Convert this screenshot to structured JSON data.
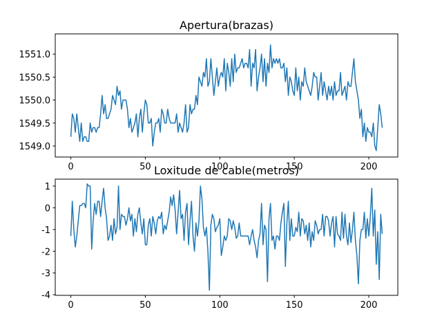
{
  "chart_data": [
    {
      "type": "line",
      "title": "Apertura(brazas)",
      "color": "#1f77b4",
      "x": [
        0,
        1,
        2,
        3,
        4,
        5,
        6,
        7,
        8,
        9,
        10,
        11,
        12,
        13,
        14,
        15,
        16,
        17,
        18,
        19,
        20,
        21,
        22,
        23,
        24,
        25,
        26,
        27,
        28,
        29,
        30,
        31,
        32,
        33,
        34,
        35,
        36,
        37,
        38,
        39,
        40,
        41,
        42,
        43,
        44,
        45,
        46,
        47,
        48,
        49,
        50,
        51,
        52,
        53,
        54,
        55,
        56,
        57,
        58,
        59,
        60,
        61,
        62,
        63,
        64,
        65,
        66,
        67,
        68,
        69,
        70,
        71,
        72,
        73,
        74,
        75,
        76,
        77,
        78,
        79,
        80,
        81,
        82,
        83,
        84,
        85,
        86,
        87,
        88,
        89,
        90,
        91,
        92,
        93,
        94,
        95,
        96,
        97,
        98,
        99,
        100,
        101,
        102,
        103,
        104,
        105,
        106,
        107,
        108,
        109,
        110,
        111,
        112,
        113,
        114,
        115,
        116,
        117,
        118,
        119,
        120,
        121,
        122,
        123,
        124,
        125,
        126,
        127,
        128,
        129,
        130,
        131,
        132,
        133,
        134,
        135,
        136,
        137,
        138,
        139,
        140,
        141,
        142,
        143,
        144,
        145,
        146,
        147,
        148,
        149,
        150,
        151,
        152,
        153,
        154,
        155,
        156,
        157,
        158,
        159,
        160,
        161,
        162,
        163,
        164,
        165,
        166,
        167,
        168,
        169,
        170,
        171,
        172,
        173,
        174,
        175,
        176,
        177,
        178,
        179,
        180,
        181,
        182,
        183,
        184,
        185,
        186,
        187,
        188,
        189,
        190,
        191,
        192,
        193,
        194,
        195,
        196,
        197,
        198,
        199,
        200,
        201,
        202,
        203,
        204,
        205,
        206,
        207,
        208,
        209
      ],
      "values": [
        1549.2,
        1549.7,
        1549.6,
        1549.3,
        1549.7,
        1549.4,
        1549.1,
        1549.5,
        1549.1,
        1549.2,
        1549.2,
        1549.1,
        1549.1,
        1549.5,
        1549.3,
        1549.4,
        1549.4,
        1549.3,
        1549.4,
        1549.4,
        1549.7,
        1550.1,
        1549.7,
        1549.9,
        1549.6,
        1549.6,
        1549.7,
        1549.8,
        1550.1,
        1550.0,
        1549.9,
        1550.3,
        1550.1,
        1550.2,
        1549.8,
        1550.0,
        1550.0,
        1550.0,
        1549.8,
        1549.4,
        1549.6,
        1549.3,
        1549.4,
        1549.5,
        1549.7,
        1549.2,
        1549.6,
        1549.8,
        1549.3,
        1549.7,
        1550.0,
        1549.9,
        1549.5,
        1549.5,
        1549.6,
        1549.0,
        1549.3,
        1549.5,
        1549.5,
        1549.6,
        1549.3,
        1549.8,
        1549.7,
        1549.5,
        1549.5,
        1549.8,
        1549.6,
        1549.5,
        1549.5,
        1549.5,
        1549.5,
        1549.7,
        1549.3,
        1549.5,
        1549.4,
        1549.3,
        1549.5,
        1549.9,
        1549.3,
        1549.4,
        1549.9,
        1549.7,
        1549.8,
        1549.8,
        1550.1,
        1549.9,
        1550.5,
        1550.4,
        1550.3,
        1550.6,
        1550.5,
        1550.9,
        1550.3,
        1550.4,
        1550.9,
        1550.5,
        1550.1,
        1550.4,
        1550.7,
        1550.3,
        1550.5,
        1550.6,
        1550.5,
        1550.9,
        1550.2,
        1550.8,
        1550.6,
        1550.3,
        1550.9,
        1550.4,
        1551.0,
        1550.6,
        1550.7,
        1550.7,
        1550.8,
        1550.9,
        1550.7,
        1550.8,
        1550.8,
        1550.7,
        1551.1,
        1550.3,
        1550.8,
        1550.7,
        1551.1,
        1550.2,
        1550.5,
        1550.7,
        1551.0,
        1550.4,
        1550.9,
        1550.3,
        1550.8,
        1550.6,
        1551.2,
        1550.7,
        1550.9,
        1550.8,
        1550.9,
        1550.8,
        1550.9,
        1550.7,
        1550.7,
        1550.8,
        1550.4,
        1550.7,
        1550.1,
        1550.5,
        1550.4,
        1550.2,
        1550.1,
        1550.7,
        1550.2,
        1550.5,
        1550.0,
        1550.4,
        1550.3,
        1550.7,
        1550.4,
        1550.3,
        1550.2,
        1550.1,
        1550.3,
        1550.6,
        1550.5,
        1550.5,
        1550.0,
        1550.3,
        1550.6,
        1550.1,
        1550.4,
        1550.2,
        1550.0,
        1550.3,
        1550.1,
        1550.3,
        1550.0,
        1550.4,
        1550.1,
        1550.2,
        1550.2,
        1550.6,
        1550.1,
        1550.2,
        1550.3,
        1550.0,
        1550.4,
        1550.3,
        1550.3,
        1550.6,
        1550.9,
        1550.4,
        1550.2,
        1550.0,
        1549.6,
        1549.8,
        1549.2,
        1549.5,
        1549.1,
        1549.4,
        1549.3,
        1549.3,
        1549.2,
        1549.5,
        1549.0,
        1548.9,
        1549.4,
        1549.9,
        1549.7,
        1549.4
      ],
      "xlim": [
        -10.45,
        219.45
      ],
      "ylim": [
        1548.76,
        1551.44
      ],
      "xticks": [
        0,
        50,
        100,
        150,
        200
      ],
      "yticks": [
        {
          "value": 1549,
          "label": "1549.0"
        },
        1549.5,
        {
          "value": 1550,
          "label": "1550.0"
        },
        1550.5,
        {
          "value": 1551,
          "label": "1551.0"
        }
      ]
    },
    {
      "type": "line",
      "title": "Loxitude de cable(metros)",
      "color": "#1f77b4",
      "x": [
        0,
        1,
        2,
        3,
        4,
        5,
        6,
        7,
        8,
        9,
        10,
        11,
        12,
        13,
        14,
        15,
        16,
        17,
        18,
        19,
        20,
        21,
        22,
        23,
        24,
        25,
        26,
        27,
        28,
        29,
        30,
        31,
        32,
        33,
        34,
        35,
        36,
        37,
        38,
        39,
        40,
        41,
        42,
        43,
        44,
        45,
        46,
        47,
        48,
        49,
        50,
        51,
        52,
        53,
        54,
        55,
        56,
        57,
        58,
        59,
        60,
        61,
        62,
        63,
        64,
        65,
        66,
        67,
        68,
        69,
        70,
        71,
        72,
        73,
        74,
        75,
        76,
        77,
        78,
        79,
        80,
        81,
        82,
        83,
        84,
        85,
        86,
        87,
        88,
        89,
        90,
        91,
        92,
        93,
        94,
        95,
        96,
        97,
        98,
        99,
        100,
        101,
        102,
        103,
        104,
        105,
        106,
        107,
        108,
        109,
        110,
        111,
        112,
        113,
        114,
        115,
        116,
        117,
        118,
        119,
        120,
        121,
        122,
        123,
        124,
        125,
        126,
        127,
        128,
        129,
        130,
        131,
        132,
        133,
        134,
        135,
        136,
        137,
        138,
        139,
        140,
        141,
        142,
        143,
        144,
        145,
        146,
        147,
        148,
        149,
        150,
        151,
        152,
        153,
        154,
        155,
        156,
        157,
        158,
        159,
        160,
        161,
        162,
        163,
        164,
        165,
        166,
        167,
        168,
        169,
        170,
        171,
        172,
        173,
        174,
        175,
        176,
        177,
        178,
        179,
        180,
        181,
        182,
        183,
        184,
        185,
        186,
        187,
        188,
        189,
        190,
        191,
        192,
        193,
        194,
        195,
        196,
        197,
        198,
        199,
        200,
        201,
        202,
        203,
        204,
        205,
        206,
        207,
        208,
        209
      ],
      "values": [
        -1.3,
        0.3,
        -1.0,
        -1.8,
        -1.3,
        -0.6,
        0.1,
        0.1,
        0.2,
        0.2,
        0.0,
        1.1,
        1.0,
        1.0,
        -1.9,
        -0.6,
        0.2,
        -0.3,
        0.3,
        0.3,
        -0.4,
        0.3,
        0.9,
        0.0,
        -0.5,
        -1.5,
        -1.3,
        -0.8,
        -1.5,
        -0.5,
        -1.2,
        -0.9,
        1.0,
        -1.0,
        -0.3,
        -0.4,
        -0.4,
        -0.8,
        -0.5,
        0.0,
        -0.6,
        -0.3,
        -1.3,
        -0.5,
        -1.1,
        -0.3,
        0.0,
        -0.7,
        -1.2,
        -0.5,
        -1.7,
        -1.7,
        -0.8,
        -0.5,
        -1.3,
        -0.4,
        -0.7,
        -1.2,
        -0.6,
        -0.4,
        -0.5,
        -0.2,
        -1.2,
        -0.8,
        -1.0,
        -0.6,
        -0.2,
        0.5,
        0.1,
        0.6,
        -0.1,
        -1.2,
        -0.2,
        0.8,
        -0.5,
        -0.3,
        -1.5,
        -0.2,
        0.2,
        -1.7,
        -0.6,
        0.3,
        -1.3,
        -2.0,
        -0.7,
        -1.3,
        -0.6,
        1.0,
        0.4,
        -0.9,
        -1.3,
        -0.9,
        -2.0,
        -3.8,
        -0.8,
        -0.3,
        -0.5,
        -1.1,
        -0.9,
        -0.8,
        -0.5,
        -2.2,
        -1.8,
        -1.3,
        -1.5,
        -1.3,
        -0.5,
        -0.6,
        -1.0,
        -0.6,
        -0.9,
        -1.4,
        -1.3,
        -0.7,
        -1.3,
        -1.3,
        -1.3,
        -1.3,
        -1.3,
        -1.3,
        -1.7,
        -1.3,
        -1.0,
        -1.5,
        -1.8,
        -2.3,
        -1.5,
        -1.2,
        0.2,
        -1.7,
        -0.8,
        -1.0,
        -3.4,
        -0.5,
        0.2,
        -1.5,
        -1.3,
        -1.9,
        -1.3,
        -1.3,
        -1.5,
        -0.7,
        -0.2,
        0.2,
        -2.7,
        -0.7,
        0.3,
        -1.5,
        -0.5,
        -1.3,
        -1.3,
        -0.9,
        -1.1,
        -0.2,
        -1.3,
        -0.5,
        -0.6,
        -1.2,
        -0.8,
        -1.5,
        -0.7,
        -1.8,
        -1.1,
        -1.5,
        -0.6,
        -0.8,
        -1.2,
        -1.0,
        -1.0,
        -0.3,
        -1.3,
        -0.4,
        -0.4,
        -0.6,
        -1.3,
        -0.7,
        -0.4,
        -1.8,
        -0.4,
        -1.2,
        -1.3,
        -1.5,
        -0.2,
        -1.4,
        -0.3,
        -1.3,
        -1.7,
        -0.7,
        -1.6,
        -1.0,
        -0.2,
        -1.5,
        -2.2,
        -3.5,
        -1.5,
        -1.0,
        -1.0,
        -0.2,
        -1.4,
        -0.5,
        -1.3,
        -0.4,
        0.9,
        -1.3,
        -0.1,
        -2.6,
        -1.1,
        -3.3,
        -0.3,
        -1.2
      ],
      "xlim": [
        -10.45,
        219.45
      ],
      "ylim": [
        -4.03,
        1.32
      ],
      "xticks": [
        0,
        50,
        100,
        150,
        200
      ],
      "yticks": [
        1,
        0,
        -1,
        -2,
        -3,
        -4
      ]
    }
  ]
}
